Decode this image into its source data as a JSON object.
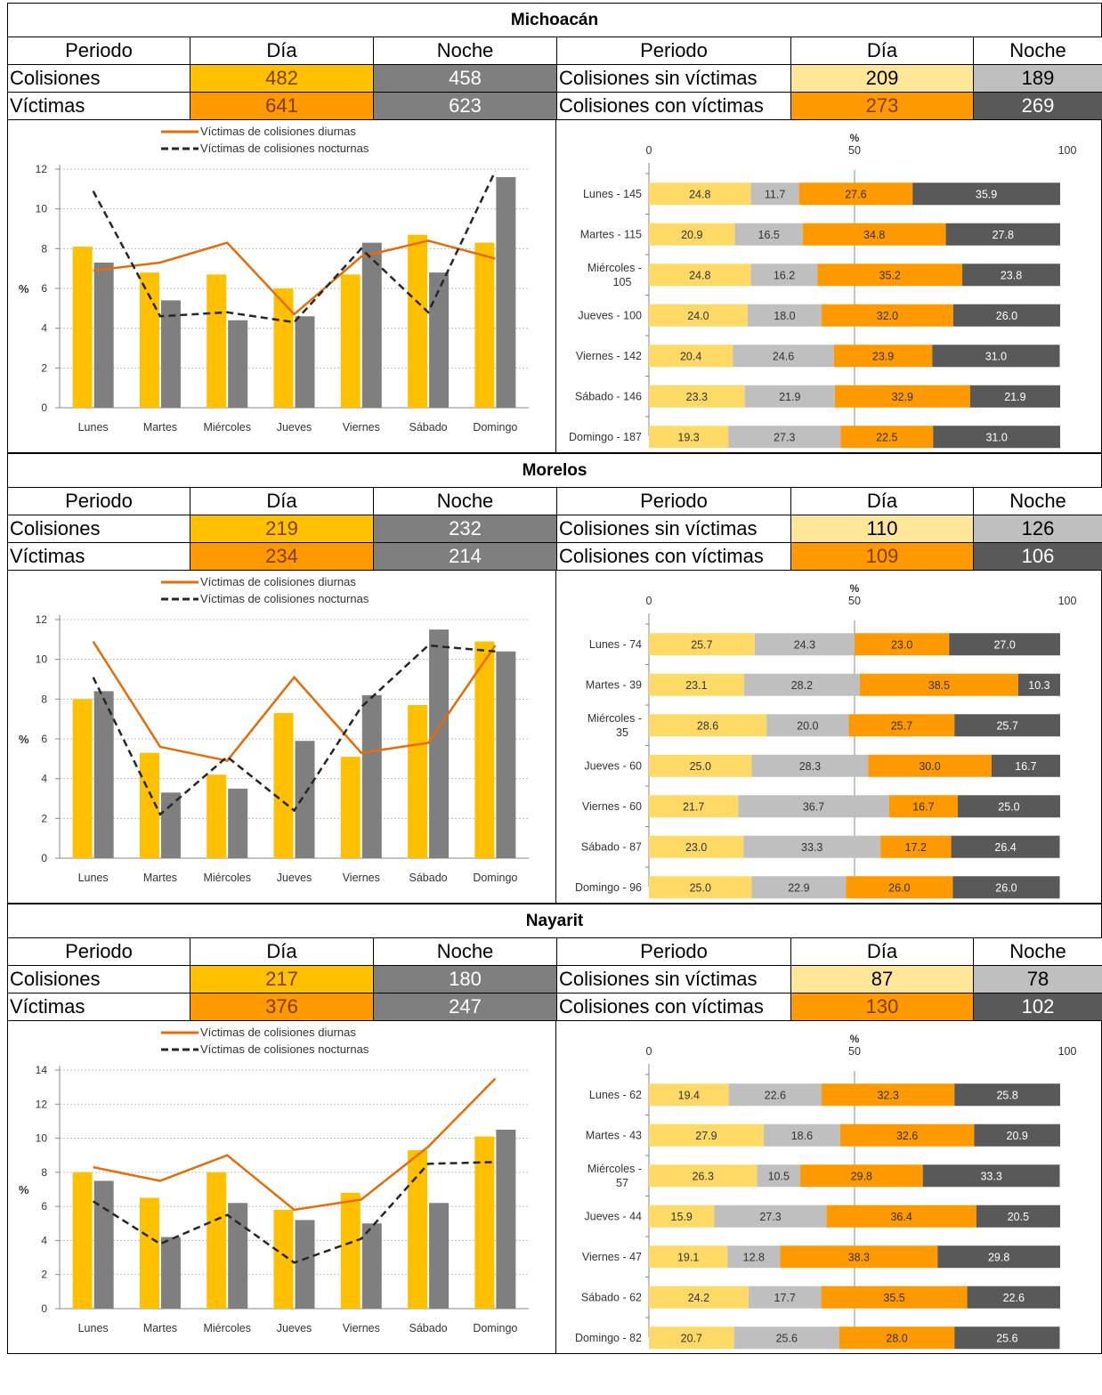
{
  "colors": {
    "dia": "#FFC000",
    "noche": "#7F7F7F",
    "victimas_dia": "#FF9900",
    "sin_victimas_dia": "#FFD966",
    "sin_victimas_noche": "#BFBFBF",
    "con_victimas_noche": "#595959",
    "line_diurnas": "#E46C0A",
    "line_nocturnas": "#262626"
  },
  "table_headers": {
    "periodo": "Periodo",
    "dia": "Día",
    "noche": "Noche",
    "colisiones": "Colisiones",
    "victimas": "Víctimas",
    "sin_victimas": "Colisiones sin víctimas",
    "con_victimas": "Colisiones con víctimas"
  },
  "legend": {
    "diurnas": "Víctimas de colisiones diurnas",
    "nocturnas": "Víctimas de colisiones nocturnas"
  },
  "axis": {
    "ylabel": "%",
    "pct_label": "%",
    "pct_ticks": [
      "0",
      "50",
      "100"
    ]
  },
  "days": [
    "Lunes",
    "Martes",
    "Miércoles",
    "Jueves",
    "Viernes",
    "Sábado",
    "Domingo"
  ],
  "sections": [
    {
      "name": "Michoacán",
      "colisiones": {
        "dia": "482",
        "noche": "458"
      },
      "victimas": {
        "dia": "641",
        "noche": "623"
      },
      "sin_victimas": {
        "dia": "209",
        "noche": "189"
      },
      "con_victimas": {
        "dia": "273",
        "noche": "269"
      }
    },
    {
      "name": "Morelos",
      "colisiones": {
        "dia": "219",
        "noche": "232"
      },
      "victimas": {
        "dia": "234",
        "noche": "214"
      },
      "sin_victimas": {
        "dia": "110",
        "noche": "126"
      },
      "con_victimas": {
        "dia": "109",
        "noche": "106"
      }
    },
    {
      "name": "Nayarit",
      "colisiones": {
        "dia": "217",
        "noche": "180"
      },
      "victimas": {
        "dia": "376",
        "noche": "247"
      },
      "sin_victimas": {
        "dia": "87",
        "noche": "78"
      },
      "con_victimas": {
        "dia": "130",
        "noche": "102"
      }
    }
  ],
  "chart_data": [
    {
      "type": "bar",
      "state": "Michoacán",
      "categories": [
        "Lunes",
        "Martes",
        "Miércoles",
        "Jueves",
        "Viernes",
        "Sábado",
        "Domingo"
      ],
      "ylim": [
        0,
        12
      ],
      "yticks": [
        0,
        2,
        4,
        6,
        8,
        10,
        12
      ],
      "ylabel": "%",
      "series": [
        {
          "values": [
            8.1,
            6.8,
            6.7,
            6.0,
            6.7,
            8.7,
            8.3
          ]
        },
        {
          "values": [
            7.3,
            5.4,
            4.4,
            4.6,
            8.3,
            6.8,
            11.6
          ]
        },
        {
          "name": "Víctimas de colisiones diurnas",
          "line": true,
          "values": [
            6.9,
            7.3,
            8.3,
            4.7,
            7.6,
            8.4,
            7.5
          ]
        },
        {
          "name": "Víctimas de colisiones nocturnas",
          "line": true,
          "values": [
            10.9,
            4.6,
            4.8,
            4.3,
            8.0,
            4.8,
            11.9
          ]
        }
      ],
      "grid": true,
      "legend": "top"
    },
    {
      "type": "bar",
      "state": "Michoacán",
      "stacked": true,
      "orientation": "horizontal",
      "categories": [
        "Lunes - 145",
        "Martes - 115",
        "Miércoles - 105",
        "Jueves - 100",
        "Viernes - 142",
        "Sábado - 146",
        "Domingo - 187"
      ],
      "xlim": [
        0,
        100
      ],
      "xlabel": "%",
      "series": [
        {
          "values": [
            24.8,
            20.9,
            24.8,
            24.0,
            20.4,
            23.3,
            19.3
          ]
        },
        {
          "values": [
            11.7,
            16.5,
            16.2,
            18.0,
            24.6,
            21.9,
            27.3
          ]
        },
        {
          "values": [
            27.6,
            34.8,
            35.2,
            32.0,
            23.9,
            32.9,
            22.5
          ]
        },
        {
          "values": [
            35.9,
            27.8,
            23.8,
            26.0,
            31.0,
            21.9,
            31.0
          ]
        }
      ]
    },
    {
      "type": "bar",
      "state": "Morelos",
      "categories": [
        "Lunes",
        "Martes",
        "Miércoles",
        "Jueves",
        "Viernes",
        "Sábado",
        "Domingo"
      ],
      "ylim": [
        0,
        12
      ],
      "yticks": [
        0,
        2,
        4,
        6,
        8,
        10,
        12
      ],
      "ylabel": "%",
      "series": [
        {
          "values": [
            8.0,
            5.3,
            4.2,
            7.3,
            5.1,
            7.7,
            10.9
          ]
        },
        {
          "values": [
            8.4,
            3.3,
            3.5,
            5.9,
            8.2,
            11.5,
            10.4
          ]
        },
        {
          "name": "Víctimas de colisiones diurnas",
          "line": true,
          "values": [
            10.9,
            5.6,
            4.9,
            9.1,
            5.3,
            5.8,
            10.7
          ]
        },
        {
          "name": "Víctimas de colisiones nocturnas",
          "line": true,
          "values": [
            9.1,
            2.2,
            5.1,
            2.4,
            7.6,
            10.7,
            10.4
          ]
        }
      ],
      "grid": true,
      "legend": "top"
    },
    {
      "type": "bar",
      "state": "Morelos",
      "stacked": true,
      "orientation": "horizontal",
      "categories": [
        "Lunes - 74",
        "Martes - 39",
        "Miércoles - 35",
        "Jueves - 60",
        "Viernes - 60",
        "Sábado - 87",
        "Domingo - 96"
      ],
      "xlim": [
        0,
        100
      ],
      "xlabel": "%",
      "series": [
        {
          "values": [
            25.7,
            23.1,
            28.6,
            25.0,
            21.7,
            23.0,
            25.0
          ]
        },
        {
          "values": [
            24.3,
            28.2,
            20.0,
            28.3,
            36.7,
            33.3,
            22.9
          ]
        },
        {
          "values": [
            23.0,
            38.5,
            25.7,
            30.0,
            16.7,
            17.2,
            26.0
          ]
        },
        {
          "values": [
            27.0,
            10.3,
            25.7,
            16.7,
            25.0,
            26.4,
            26.0
          ]
        }
      ]
    },
    {
      "type": "bar",
      "state": "Nayarit",
      "categories": [
        "Lunes",
        "Martes",
        "Miércoles",
        "Jueves",
        "Viernes",
        "Sábado",
        "Domingo"
      ],
      "ylim": [
        0,
        14
      ],
      "yticks": [
        0,
        2,
        4,
        6,
        8,
        10,
        12,
        14
      ],
      "ylabel": "%",
      "series": [
        {
          "values": [
            8.0,
            6.5,
            8.0,
            5.8,
            6.8,
            9.3,
            10.1
          ]
        },
        {
          "values": [
            7.5,
            4.2,
            6.2,
            5.2,
            5.0,
            6.2,
            10.5
          ]
        },
        {
          "name": "Víctimas de colisiones diurnas",
          "line": true,
          "values": [
            8.3,
            7.5,
            9.0,
            5.8,
            6.4,
            9.5,
            13.5
          ]
        },
        {
          "name": "Víctimas de colisiones nocturnas",
          "line": true,
          "values": [
            6.3,
            3.8,
            5.5,
            2.7,
            4.1,
            8.5,
            8.6
          ]
        }
      ],
      "grid": true,
      "legend": "top"
    },
    {
      "type": "bar",
      "state": "Nayarit",
      "stacked": true,
      "orientation": "horizontal",
      "categories": [
        "Lunes - 62",
        "Martes - 43",
        "Miércoles - 57",
        "Jueves - 44",
        "Viernes - 47",
        "Sábado - 62",
        "Domingo - 82"
      ],
      "xlim": [
        0,
        100
      ],
      "xlabel": "%",
      "series": [
        {
          "values": [
            19.4,
            27.9,
            26.3,
            15.9,
            19.1,
            24.2,
            20.7
          ]
        },
        {
          "values": [
            22.6,
            18.6,
            10.5,
            27.3,
            12.8,
            17.7,
            25.6
          ]
        },
        {
          "values": [
            32.3,
            32.6,
            29.8,
            36.4,
            38.3,
            35.5,
            28.0
          ]
        },
        {
          "values": [
            25.8,
            20.9,
            33.3,
            20.5,
            29.8,
            22.6,
            25.6
          ]
        }
      ]
    }
  ]
}
